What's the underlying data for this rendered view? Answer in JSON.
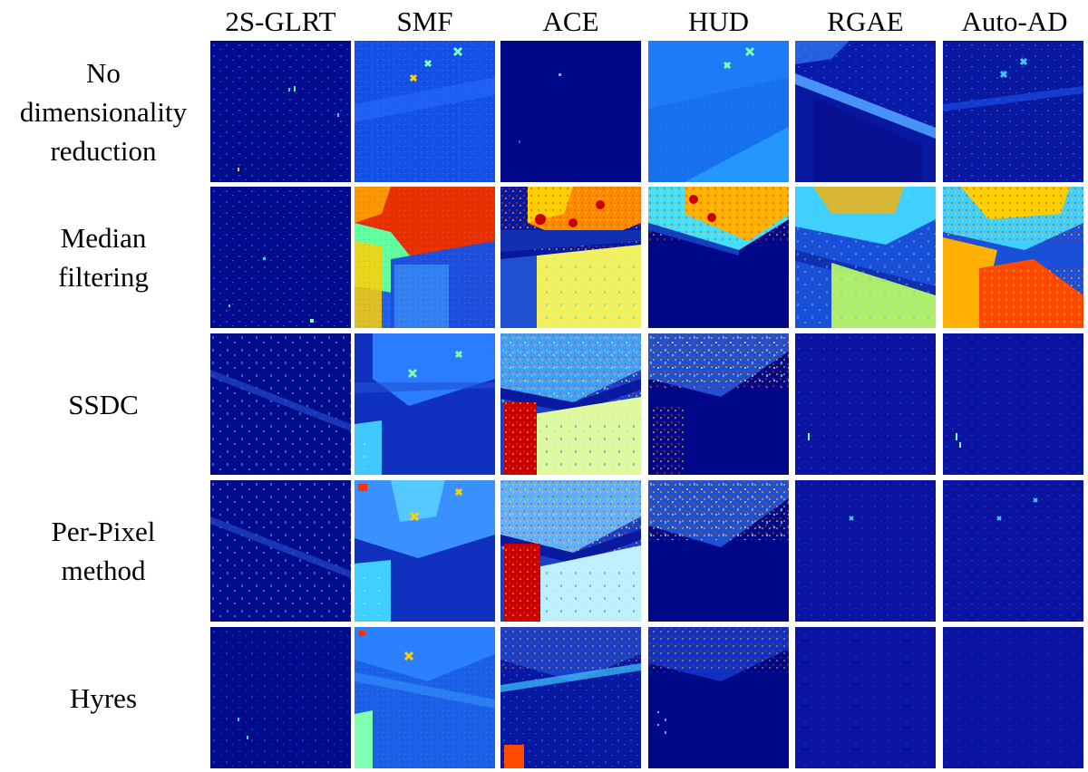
{
  "figure": {
    "methods": [
      "2S-GLRT",
      "SMF",
      "ACE",
      "HUD",
      "RGAE",
      "Auto-AD"
    ],
    "rows": [
      {
        "label_lines": [
          "No",
          "dimensionality",
          "reduction"
        ]
      },
      {
        "label_lines": [
          "Median",
          "filtering"
        ]
      },
      {
        "label_lines": [
          "SSDC"
        ]
      },
      {
        "label_lines": [
          "Per-Pixel",
          "method"
        ]
      },
      {
        "label_lines": [
          "Hyres"
        ]
      }
    ],
    "colormap": "jet",
    "colors": {
      "background": "#ffffff",
      "low": "#00008b",
      "mid": "#00bfff",
      "high": "#ff3000"
    }
  }
}
